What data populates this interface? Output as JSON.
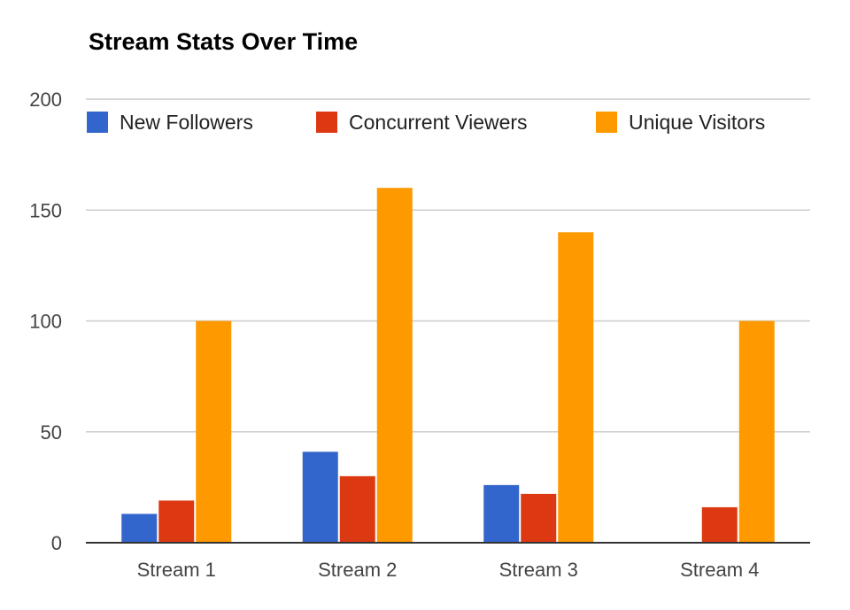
{
  "chart_data": {
    "type": "bar",
    "title": "Stream Stats Over Time",
    "xlabel": "",
    "ylabel": "",
    "categories": [
      "Stream 1",
      "Stream 2",
      "Stream 3",
      "Stream 4"
    ],
    "series": [
      {
        "name": "New Followers",
        "color": "#3366cc",
        "values": [
          13,
          41,
          26,
          0
        ]
      },
      {
        "name": "Concurrent Viewers",
        "color": "#dc3912",
        "values": [
          19,
          30,
          22,
          16
        ]
      },
      {
        "name": "Unique Visitors",
        "color": "#ff9900",
        "values": [
          100,
          160,
          140,
          100
        ]
      }
    ],
    "ylim": [
      0,
      200
    ],
    "yticks": [
      0,
      50,
      100,
      150,
      200
    ],
    "grid": true,
    "legend_position": "top"
  }
}
